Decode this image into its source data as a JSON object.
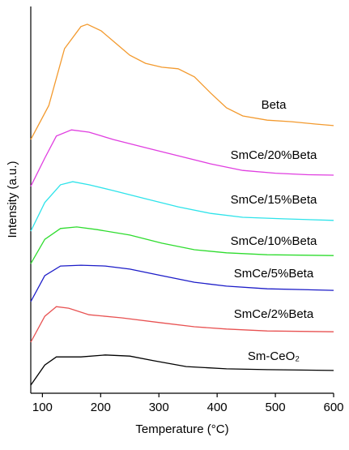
{
  "chart_data": {
    "type": "line",
    "xlabel": "Temperature (°C)",
    "ylabel": "Intensity (a.u.)",
    "xlim": [
      80,
      600
    ],
    "xticks": [
      100,
      200,
      300,
      400,
      500,
      600
    ],
    "ylim": [
      0,
      100
    ],
    "series": [
      {
        "name": "Beta",
        "color": "#f39a2e",
        "x": [
          80,
          111,
          138,
          166,
          177,
          201,
          229,
          250,
          277,
          305,
          333,
          361,
          389,
          416,
          444,
          486,
          528,
          569,
          600
        ],
        "values": [
          65.6,
          74.4,
          89.1,
          94.8,
          95.4,
          93.7,
          90.1,
          87.4,
          85.3,
          84.3,
          83.9,
          81.8,
          77.6,
          73.8,
          71.7,
          70.6,
          70.2,
          69.6,
          69.2
        ]
      },
      {
        "name": "SmCe/20%Beta",
        "color": "#e03ee0",
        "x": [
          80,
          104,
          124,
          150,
          180,
          222,
          277,
          333,
          389,
          444,
          500,
          556,
          600
        ],
        "values": [
          53.5,
          60.8,
          66.5,
          68.1,
          67.5,
          65.6,
          63.5,
          61.4,
          59.3,
          57.6,
          56.9,
          56.5,
          56.4
        ]
      },
      {
        "name": "SmCe/15%Beta",
        "color": "#2ee3ea",
        "x": [
          80,
          104,
          131,
          152,
          180,
          222,
          277,
          333,
          389,
          444,
          514,
          600
        ],
        "values": [
          41.9,
          49.3,
          53.9,
          54.7,
          53.9,
          52.4,
          50.3,
          48.2,
          46.5,
          45.5,
          45.1,
          44.7
        ]
      },
      {
        "name": "SmCe/10%Beta",
        "color": "#2edc2e",
        "x": [
          80,
          104,
          131,
          159,
          194,
          250,
          305,
          361,
          416,
          486,
          600
        ],
        "values": [
          33.5,
          39.8,
          42.6,
          43.0,
          42.3,
          40.9,
          38.8,
          37.1,
          36.3,
          35.8,
          35.6
        ]
      },
      {
        "name": "SmCe/5%Beta",
        "color": "#1c1cc8",
        "x": [
          80,
          104,
          131,
          166,
          208,
          250,
          305,
          361,
          416,
          486,
          600
        ],
        "values": [
          23.7,
          30.4,
          32.9,
          33.1,
          32.9,
          32.1,
          30.4,
          28.7,
          27.7,
          27.0,
          26.6
        ]
      },
      {
        "name": "SmCe/2%Beta",
        "color": "#e85252",
        "x": [
          80,
          104,
          124,
          145,
          180,
          236,
          305,
          361,
          416,
          486,
          600
        ],
        "values": [
          13.2,
          19.9,
          22.4,
          22.0,
          20.3,
          19.5,
          18.2,
          17.2,
          16.6,
          16.1,
          15.9
        ]
      },
      {
        "name": "Sm-CeO₂",
        "color": "#000000",
        "x": [
          80,
          104,
          124,
          166,
          208,
          250,
          291,
          347,
          416,
          486,
          600
        ],
        "values": [
          2.1,
          7.3,
          9.4,
          9.4,
          9.9,
          9.6,
          8.4,
          6.9,
          6.3,
          6.1,
          5.9
        ]
      }
    ]
  }
}
